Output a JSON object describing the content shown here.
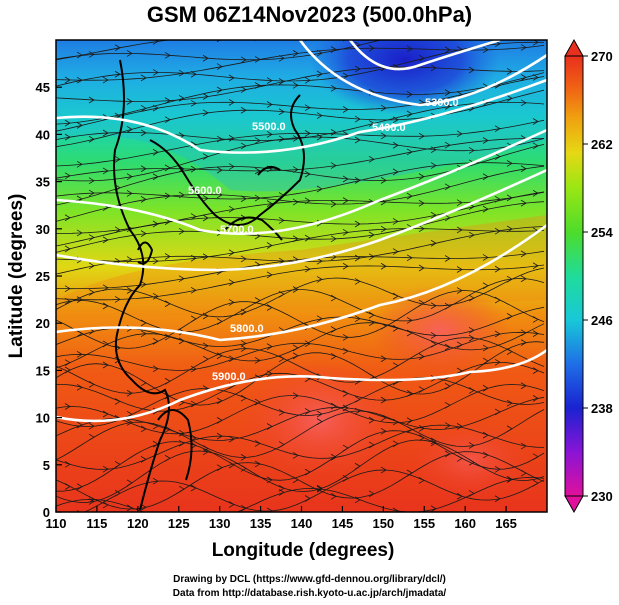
{
  "title": "GSM 06Z14Nov2023 (500.0hPa)",
  "chart_data": {
    "type": "heatmap",
    "title": "GSM 06Z14Nov2023 (500.0hPa)",
    "xlabel": "Longitude (degrees)",
    "ylabel": "Latitude  (degrees)",
    "xlim": [
      110,
      170
    ],
    "ylim": [
      0,
      50
    ],
    "xticks": [
      "110",
      "115",
      "120",
      "125",
      "130",
      "135",
      "140",
      "145",
      "150",
      "155",
      "160",
      "165"
    ],
    "yticks": [
      "0",
      "5",
      "10",
      "15",
      "20",
      "25",
      "30",
      "35",
      "40",
      "45"
    ],
    "colorbar": {
      "min": 230,
      "max": 270,
      "labels": [
        "230",
        "238",
        "246",
        "254",
        "262",
        "270"
      ],
      "colors": [
        "#e0109c",
        "#7a12d8",
        "#1a22d0",
        "#1f6fe6",
        "#18c8d8",
        "#1fdc9a",
        "#4edc2a",
        "#9ae614",
        "#e6d814",
        "#f0a010",
        "#f06014",
        "#e8301e"
      ]
    },
    "contours": [
      {
        "label": "5300.0"
      },
      {
        "label": "5400.0"
      },
      {
        "label": "5500.0"
      },
      {
        "label": "5600.0"
      },
      {
        "label": "5700.0"
      },
      {
        "label": "5800.0"
      },
      {
        "label": "5900.0"
      }
    ]
  },
  "credits": {
    "line1": "Drawing by DCL (https://www.gfd-dennou.org/library/dcl/)",
    "line2": "Data from http://database.rish.kyoto-u.ac.jp/arch/jmadata/"
  }
}
